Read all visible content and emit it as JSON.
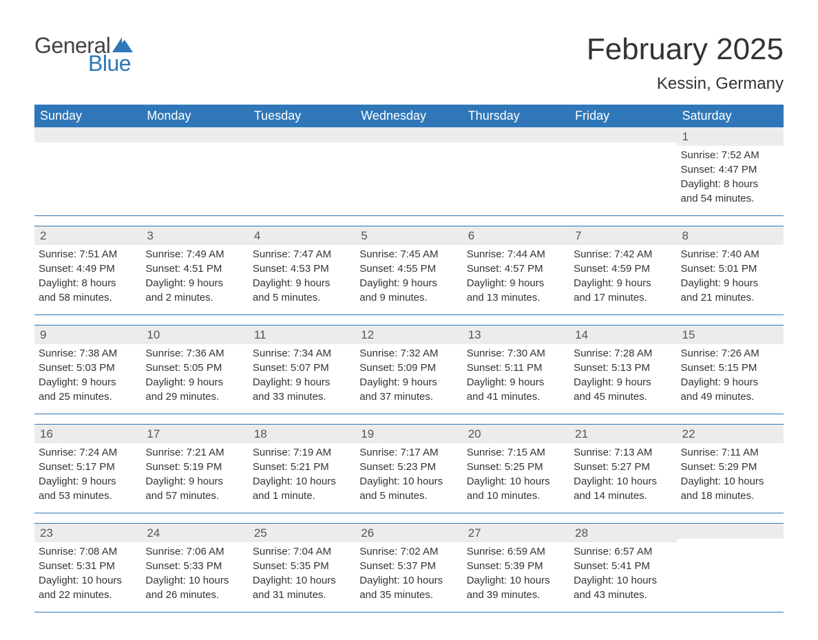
{
  "brand": {
    "word1": "General",
    "word2": "Blue",
    "word1_color": "#444444",
    "word2_color": "#2f77b8",
    "flag_color": "#2f77b8"
  },
  "header": {
    "title": "February 2025",
    "location": "Kessin, Germany"
  },
  "styling": {
    "header_bg": "#2f77b8",
    "header_text": "#ffffff",
    "date_strip_bg": "#ececec",
    "row_border": "#2f77b8",
    "body_text": "#333333",
    "page_bg": "#ffffff",
    "title_fontsize": 44,
    "location_fontsize": 24,
    "dayheader_fontsize": 18,
    "datenum_fontsize": 17,
    "detail_fontsize": 15
  },
  "day_headers": [
    "Sunday",
    "Monday",
    "Tuesday",
    "Wednesday",
    "Thursday",
    "Friday",
    "Saturday"
  ],
  "weeks": [
    [
      {
        "date": "",
        "sunrise": "",
        "sunset": "",
        "daylight1": "",
        "daylight2": ""
      },
      {
        "date": "",
        "sunrise": "",
        "sunset": "",
        "daylight1": "",
        "daylight2": ""
      },
      {
        "date": "",
        "sunrise": "",
        "sunset": "",
        "daylight1": "",
        "daylight2": ""
      },
      {
        "date": "",
        "sunrise": "",
        "sunset": "",
        "daylight1": "",
        "daylight2": ""
      },
      {
        "date": "",
        "sunrise": "",
        "sunset": "",
        "daylight1": "",
        "daylight2": ""
      },
      {
        "date": "",
        "sunrise": "",
        "sunset": "",
        "daylight1": "",
        "daylight2": ""
      },
      {
        "date": "1",
        "sunrise": "Sunrise: 7:52 AM",
        "sunset": "Sunset: 4:47 PM",
        "daylight1": "Daylight: 8 hours",
        "daylight2": "and 54 minutes."
      }
    ],
    [
      {
        "date": "2",
        "sunrise": "Sunrise: 7:51 AM",
        "sunset": "Sunset: 4:49 PM",
        "daylight1": "Daylight: 8 hours",
        "daylight2": "and 58 minutes."
      },
      {
        "date": "3",
        "sunrise": "Sunrise: 7:49 AM",
        "sunset": "Sunset: 4:51 PM",
        "daylight1": "Daylight: 9 hours",
        "daylight2": "and 2 minutes."
      },
      {
        "date": "4",
        "sunrise": "Sunrise: 7:47 AM",
        "sunset": "Sunset: 4:53 PM",
        "daylight1": "Daylight: 9 hours",
        "daylight2": "and 5 minutes."
      },
      {
        "date": "5",
        "sunrise": "Sunrise: 7:45 AM",
        "sunset": "Sunset: 4:55 PM",
        "daylight1": "Daylight: 9 hours",
        "daylight2": "and 9 minutes."
      },
      {
        "date": "6",
        "sunrise": "Sunrise: 7:44 AM",
        "sunset": "Sunset: 4:57 PM",
        "daylight1": "Daylight: 9 hours",
        "daylight2": "and 13 minutes."
      },
      {
        "date": "7",
        "sunrise": "Sunrise: 7:42 AM",
        "sunset": "Sunset: 4:59 PM",
        "daylight1": "Daylight: 9 hours",
        "daylight2": "and 17 minutes."
      },
      {
        "date": "8",
        "sunrise": "Sunrise: 7:40 AM",
        "sunset": "Sunset: 5:01 PM",
        "daylight1": "Daylight: 9 hours",
        "daylight2": "and 21 minutes."
      }
    ],
    [
      {
        "date": "9",
        "sunrise": "Sunrise: 7:38 AM",
        "sunset": "Sunset: 5:03 PM",
        "daylight1": "Daylight: 9 hours",
        "daylight2": "and 25 minutes."
      },
      {
        "date": "10",
        "sunrise": "Sunrise: 7:36 AM",
        "sunset": "Sunset: 5:05 PM",
        "daylight1": "Daylight: 9 hours",
        "daylight2": "and 29 minutes."
      },
      {
        "date": "11",
        "sunrise": "Sunrise: 7:34 AM",
        "sunset": "Sunset: 5:07 PM",
        "daylight1": "Daylight: 9 hours",
        "daylight2": "and 33 minutes."
      },
      {
        "date": "12",
        "sunrise": "Sunrise: 7:32 AM",
        "sunset": "Sunset: 5:09 PM",
        "daylight1": "Daylight: 9 hours",
        "daylight2": "and 37 minutes."
      },
      {
        "date": "13",
        "sunrise": "Sunrise: 7:30 AM",
        "sunset": "Sunset: 5:11 PM",
        "daylight1": "Daylight: 9 hours",
        "daylight2": "and 41 minutes."
      },
      {
        "date": "14",
        "sunrise": "Sunrise: 7:28 AM",
        "sunset": "Sunset: 5:13 PM",
        "daylight1": "Daylight: 9 hours",
        "daylight2": "and 45 minutes."
      },
      {
        "date": "15",
        "sunrise": "Sunrise: 7:26 AM",
        "sunset": "Sunset: 5:15 PM",
        "daylight1": "Daylight: 9 hours",
        "daylight2": "and 49 minutes."
      }
    ],
    [
      {
        "date": "16",
        "sunrise": "Sunrise: 7:24 AM",
        "sunset": "Sunset: 5:17 PM",
        "daylight1": "Daylight: 9 hours",
        "daylight2": "and 53 minutes."
      },
      {
        "date": "17",
        "sunrise": "Sunrise: 7:21 AM",
        "sunset": "Sunset: 5:19 PM",
        "daylight1": "Daylight: 9 hours",
        "daylight2": "and 57 minutes."
      },
      {
        "date": "18",
        "sunrise": "Sunrise: 7:19 AM",
        "sunset": "Sunset: 5:21 PM",
        "daylight1": "Daylight: 10 hours",
        "daylight2": "and 1 minute."
      },
      {
        "date": "19",
        "sunrise": "Sunrise: 7:17 AM",
        "sunset": "Sunset: 5:23 PM",
        "daylight1": "Daylight: 10 hours",
        "daylight2": "and 5 minutes."
      },
      {
        "date": "20",
        "sunrise": "Sunrise: 7:15 AM",
        "sunset": "Sunset: 5:25 PM",
        "daylight1": "Daylight: 10 hours",
        "daylight2": "and 10 minutes."
      },
      {
        "date": "21",
        "sunrise": "Sunrise: 7:13 AM",
        "sunset": "Sunset: 5:27 PM",
        "daylight1": "Daylight: 10 hours",
        "daylight2": "and 14 minutes."
      },
      {
        "date": "22",
        "sunrise": "Sunrise: 7:11 AM",
        "sunset": "Sunset: 5:29 PM",
        "daylight1": "Daylight: 10 hours",
        "daylight2": "and 18 minutes."
      }
    ],
    [
      {
        "date": "23",
        "sunrise": "Sunrise: 7:08 AM",
        "sunset": "Sunset: 5:31 PM",
        "daylight1": "Daylight: 10 hours",
        "daylight2": "and 22 minutes."
      },
      {
        "date": "24",
        "sunrise": "Sunrise: 7:06 AM",
        "sunset": "Sunset: 5:33 PM",
        "daylight1": "Daylight: 10 hours",
        "daylight2": "and 26 minutes."
      },
      {
        "date": "25",
        "sunrise": "Sunrise: 7:04 AM",
        "sunset": "Sunset: 5:35 PM",
        "daylight1": "Daylight: 10 hours",
        "daylight2": "and 31 minutes."
      },
      {
        "date": "26",
        "sunrise": "Sunrise: 7:02 AM",
        "sunset": "Sunset: 5:37 PM",
        "daylight1": "Daylight: 10 hours",
        "daylight2": "and 35 minutes."
      },
      {
        "date": "27",
        "sunrise": "Sunrise: 6:59 AM",
        "sunset": "Sunset: 5:39 PM",
        "daylight1": "Daylight: 10 hours",
        "daylight2": "and 39 minutes."
      },
      {
        "date": "28",
        "sunrise": "Sunrise: 6:57 AM",
        "sunset": "Sunset: 5:41 PM",
        "daylight1": "Daylight: 10 hours",
        "daylight2": "and 43 minutes."
      },
      {
        "date": "",
        "sunrise": "",
        "sunset": "",
        "daylight1": "",
        "daylight2": ""
      }
    ]
  ]
}
